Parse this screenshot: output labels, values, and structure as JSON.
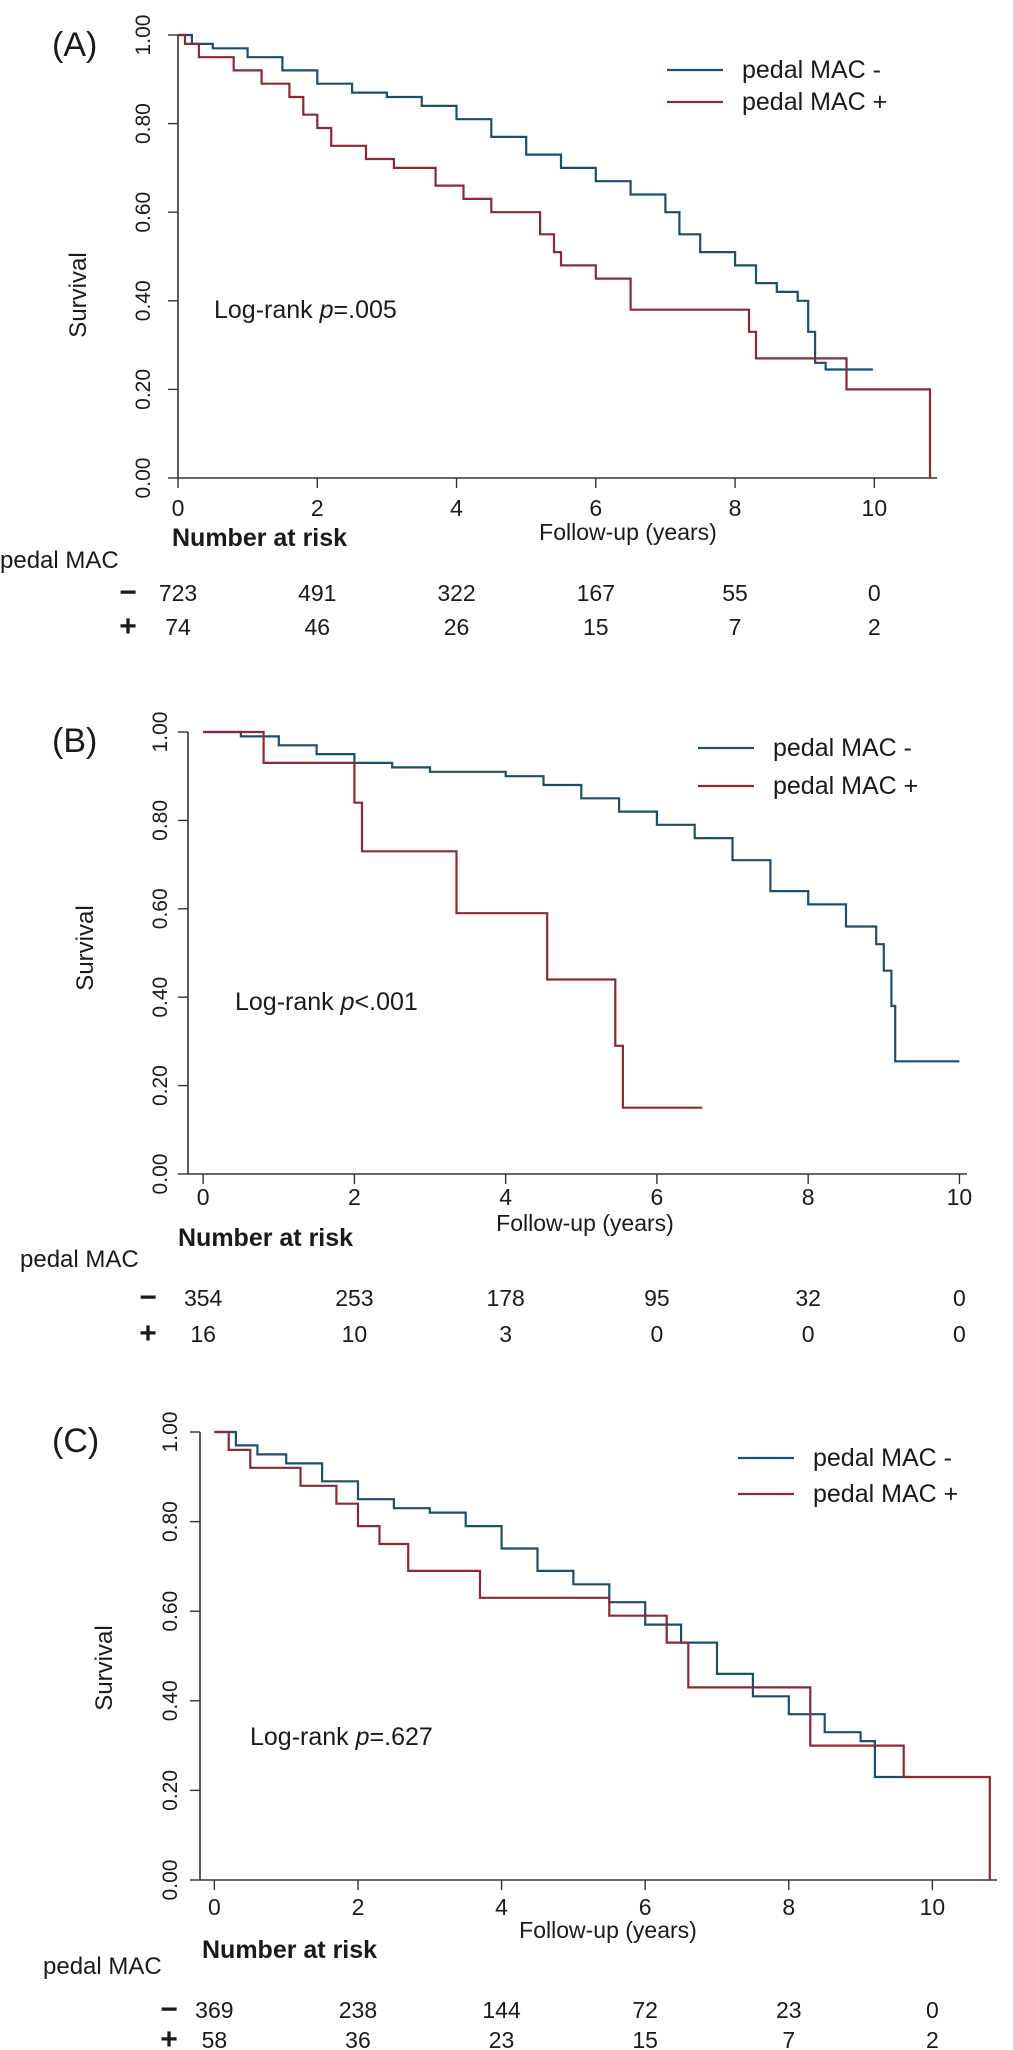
{
  "colors": {
    "neg": "#1f4e6b",
    "pos": "#8b2a36",
    "axis": "#333333",
    "text": "#1a1a1a"
  },
  "chart_data": [
    {
      "type": "line",
      "panel_label": "(A)",
      "ylabel": "Survival",
      "xlabel": "Follow-up (years)",
      "xlim": [
        0,
        10.9
      ],
      "ylim": [
        0,
        1
      ],
      "xticks": [
        0,
        2,
        4,
        6,
        8,
        10
      ],
      "yticks": [
        "0.00",
        "0.20",
        "0.40",
        "0.60",
        "0.80",
        "1.00"
      ],
      "grid": false,
      "legend_position": "top-right",
      "annotation": {
        "prefix": "Log-rank ",
        "italic": "p",
        "suffix": "=.005"
      },
      "series": [
        {
          "name": "pedal MAC -",
          "key": "neg",
          "x": [
            0,
            0.2,
            0.5,
            1.0,
            1.5,
            2.0,
            2.5,
            3.0,
            3.5,
            4.0,
            4.5,
            5.0,
            5.5,
            6.0,
            6.5,
            7.0,
            7.2,
            7.5,
            8.0,
            8.3,
            8.6,
            8.9,
            9.05,
            9.15,
            9.3,
            9.98
          ],
          "y": [
            1.0,
            0.98,
            0.97,
            0.95,
            0.92,
            0.89,
            0.87,
            0.86,
            0.84,
            0.81,
            0.77,
            0.73,
            0.7,
            0.67,
            0.64,
            0.6,
            0.55,
            0.51,
            0.48,
            0.44,
            0.42,
            0.4,
            0.33,
            0.26,
            0.245,
            0.245
          ]
        },
        {
          "name": "pedal MAC +",
          "key": "pos",
          "x": [
            0,
            0.1,
            0.3,
            0.8,
            1.2,
            1.6,
            1.8,
            2.0,
            2.2,
            2.7,
            3.1,
            3.7,
            4.1,
            4.5,
            5.2,
            5.4,
            5.5,
            6.0,
            6.5,
            8.2,
            8.3,
            9.6,
            10.8
          ],
          "y": [
            1.0,
            0.98,
            0.95,
            0.92,
            0.89,
            0.86,
            0.82,
            0.79,
            0.75,
            0.72,
            0.7,
            0.66,
            0.63,
            0.6,
            0.55,
            0.51,
            0.48,
            0.45,
            0.38,
            0.33,
            0.27,
            0.2,
            0.0
          ]
        }
      ],
      "risk_table": {
        "title": "Number at risk",
        "row_label": "pedal MAC",
        "rows": [
          {
            "symbol": "−",
            "values": [
              "723",
              "491",
              "322",
              "167",
              "55",
              "0"
            ]
          },
          {
            "symbol": "+",
            "values": [
              "74",
              "46",
              "26",
              "15",
              "7",
              "2"
            ]
          }
        ]
      }
    },
    {
      "type": "line",
      "panel_label": "(B)",
      "ylabel": "Survival",
      "xlabel": "Follow-up (years)",
      "xlim": [
        -0.2,
        10.1
      ],
      "ylim": [
        0,
        1
      ],
      "xticks": [
        0,
        2,
        4,
        6,
        8,
        10
      ],
      "yticks": [
        "0.00",
        "0.20",
        "0.40",
        "0.60",
        "0.80",
        "1.00"
      ],
      "grid": false,
      "legend_position": "top-right",
      "annotation": {
        "prefix": "Log-rank ",
        "italic": "p",
        "suffix": "<.001"
      },
      "series": [
        {
          "name": "pedal MAC -",
          "key": "neg",
          "x": [
            0,
            0.5,
            1.0,
            1.5,
            2.0,
            2.5,
            3.0,
            3.5,
            4.0,
            4.5,
            5.0,
            5.5,
            6.0,
            6.5,
            7.0,
            7.5,
            8.0,
            8.5,
            8.9,
            9.0,
            9.1,
            9.15,
            10.0
          ],
          "y": [
            1.0,
            0.99,
            0.97,
            0.95,
            0.93,
            0.92,
            0.91,
            0.91,
            0.9,
            0.88,
            0.85,
            0.82,
            0.79,
            0.76,
            0.71,
            0.64,
            0.61,
            0.56,
            0.52,
            0.46,
            0.38,
            0.255,
            0.255
          ]
        },
        {
          "name": "pedal MAC +",
          "key": "pos",
          "x": [
            0,
            0.8,
            2.0,
            2.1,
            3.35,
            4.55,
            5.45,
            5.55,
            6.6
          ],
          "y": [
            1.0,
            0.93,
            0.84,
            0.73,
            0.59,
            0.44,
            0.29,
            0.15,
            0.15
          ]
        }
      ],
      "risk_table": {
        "title": "Number at risk",
        "row_label": "pedal MAC",
        "rows": [
          {
            "symbol": "−",
            "values": [
              "354",
              "253",
              "178",
              "95",
              "32",
              "0"
            ]
          },
          {
            "symbol": "+",
            "values": [
              "16",
              "10",
              "3",
              "0",
              "0",
              "0"
            ]
          }
        ]
      }
    },
    {
      "type": "line",
      "panel_label": "(C)",
      "ylabel": "Survival",
      "xlabel": "Follow-up (years)",
      "xlim": [
        -0.2,
        10.9
      ],
      "ylim": [
        0,
        1
      ],
      "xticks": [
        0,
        2,
        4,
        6,
        8,
        10
      ],
      "yticks": [
        "0.00",
        "0.20",
        "0.40",
        "0.60",
        "0.80",
        "1.00"
      ],
      "grid": false,
      "legend_position": "top-right",
      "annotation": {
        "prefix": "Log-rank  ",
        "italic": "p",
        "suffix": "=.627"
      },
      "series": [
        {
          "name": "pedal MAC -",
          "key": "neg",
          "x": [
            0,
            0.3,
            0.6,
            1.0,
            1.5,
            2.0,
            2.5,
            3.0,
            3.5,
            4.0,
            4.5,
            5.0,
            5.5,
            6.0,
            6.5,
            7.0,
            7.5,
            8.0,
            8.5,
            9.0,
            9.2,
            9.7
          ],
          "y": [
            1.0,
            0.97,
            0.95,
            0.93,
            0.89,
            0.85,
            0.83,
            0.82,
            0.79,
            0.74,
            0.69,
            0.66,
            0.62,
            0.57,
            0.53,
            0.46,
            0.41,
            0.37,
            0.33,
            0.31,
            0.23,
            0.23
          ]
        },
        {
          "name": "pedal MAC +",
          "key": "pos",
          "x": [
            0,
            0.2,
            0.5,
            1.2,
            1.7,
            2.0,
            2.3,
            2.7,
            3.7,
            5.5,
            6.3,
            6.6,
            8.2,
            8.3,
            9.6,
            10.8
          ],
          "y": [
            1.0,
            0.96,
            0.92,
            0.88,
            0.84,
            0.79,
            0.75,
            0.69,
            0.63,
            0.59,
            0.53,
            0.43,
            0.43,
            0.3,
            0.23,
            0.0
          ]
        }
      ],
      "risk_table": {
        "title": "Number at risk",
        "row_label": "pedal MAC",
        "rows": [
          {
            "symbol": "−",
            "values": [
              "369",
              "238",
              "144",
              "72",
              "23",
              "0"
            ]
          },
          {
            "symbol": "+",
            "values": [
              "58",
              "36",
              "23",
              "15",
              "7",
              "2"
            ]
          }
        ]
      }
    }
  ]
}
